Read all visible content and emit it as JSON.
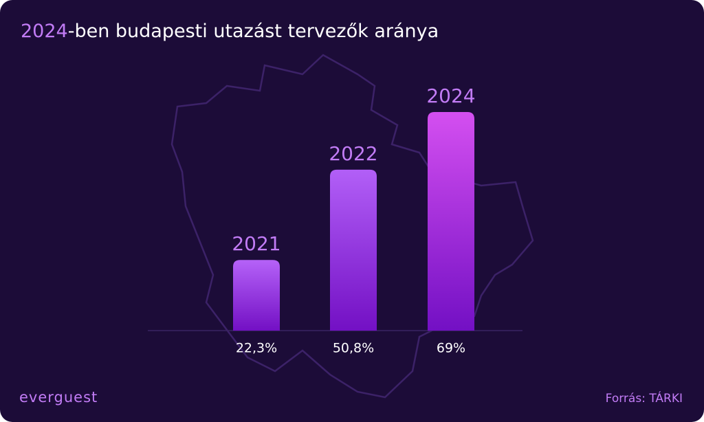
{
  "chart_data": {
    "type": "bar",
    "title": [
      "2024",
      "-ben budapesti utazást tervezők aránya"
    ],
    "categories": [
      "2021",
      "2022",
      "2024"
    ],
    "values": [
      22.3,
      50.8,
      69
    ],
    "value_labels": [
      "22,3%",
      "50,8%",
      "69%"
    ],
    "color_top": [
      "#b562f8",
      "#b25ff7",
      "#d44ff0"
    ],
    "color_bottom": "#7310c4",
    "source": "Forrás: TÁRKI",
    "logo": "everguest"
  }
}
